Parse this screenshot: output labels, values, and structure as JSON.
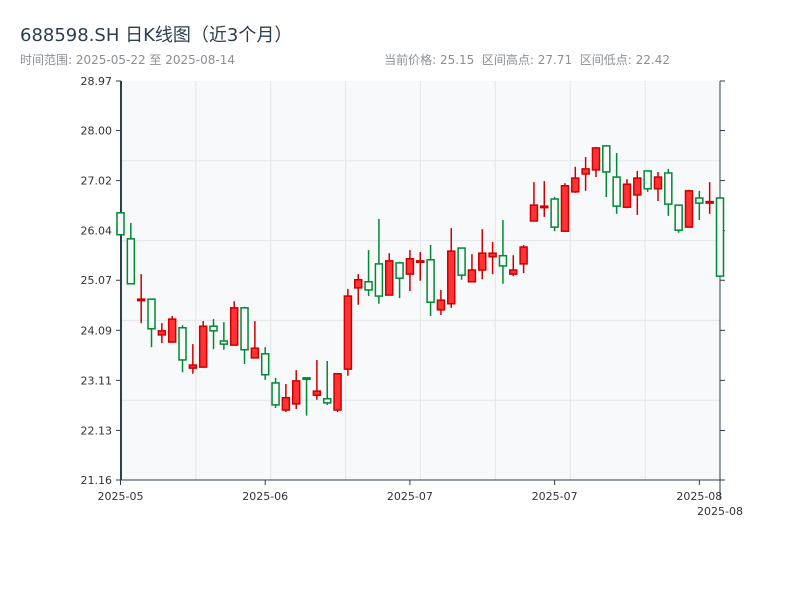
{
  "header": {
    "title": "688598.SH 日K线图（近3个月）",
    "subtitle": "时间范围: 2025-05-22 至 2025-08-14",
    "stats": "当前价格: 25.15  区间高点: 27.71  区间低点: 22.42"
  },
  "chart_data": {
    "type": "candlestick",
    "title": "688598.SH 日K线图（近3个月）",
    "date_range": [
      "2025-05-22",
      "2025-08-14"
    ],
    "current_price": 25.15,
    "period_high": 27.71,
    "period_low": 22.42,
    "colors": {
      "up": "#ff3333",
      "up_edge": "#cc0000",
      "down": "#008833",
      "background": "#f8f9fb"
    },
    "ylim": [
      21.16,
      28.97
    ],
    "yticks": [
      21.16,
      22.13,
      23.11,
      24.09,
      25.07,
      26.04,
      27.02,
      28.0,
      28.97
    ],
    "ytick_labels": [
      "21.16",
      "22.13",
      "23.11",
      "24.09",
      "25.07",
      "26.04",
      "27.02",
      "28.00",
      "28.97"
    ],
    "xticks": [
      {
        "index": 0,
        "label": "2025-05"
      },
      {
        "index": 14,
        "label": "2025-06"
      },
      {
        "index": 28,
        "label": "2025-07"
      },
      {
        "index": 42,
        "label": "2025-07"
      },
      {
        "index": 56,
        "label": "2025-08"
      },
      {
        "index": 58,
        "label": "2025-08"
      }
    ],
    "ohlc_fields": [
      "open",
      "high",
      "low",
      "close"
    ],
    "ohlc": [
      [
        26.39,
        26.39,
        25.96,
        25.96
      ],
      [
        25.88,
        26.19,
        25.0,
        25.0
      ],
      [
        24.68,
        25.19,
        24.23,
        24.7
      ],
      [
        24.7,
        24.7,
        23.76,
        24.12
      ],
      [
        24.0,
        24.23,
        23.84,
        24.08
      ],
      [
        23.86,
        24.37,
        23.86,
        24.31
      ],
      [
        24.14,
        24.19,
        23.27,
        23.51
      ],
      [
        23.35,
        23.82,
        23.24,
        23.41
      ],
      [
        23.37,
        24.27,
        23.37,
        24.17
      ],
      [
        24.17,
        24.31,
        23.72,
        24.08
      ],
      [
        23.88,
        24.25,
        23.71,
        23.82
      ],
      [
        23.8,
        24.66,
        23.8,
        24.53
      ],
      [
        24.53,
        24.55,
        23.43,
        23.71
      ],
      [
        23.55,
        24.27,
        23.55,
        23.74
      ],
      [
        23.63,
        23.76,
        23.12,
        23.22
      ],
      [
        23.06,
        23.16,
        22.57,
        22.63
      ],
      [
        22.53,
        23.04,
        22.49,
        22.77
      ],
      [
        22.65,
        23.31,
        22.55,
        23.1
      ],
      [
        23.16,
        23.16,
        22.42,
        23.14
      ],
      [
        22.82,
        23.51,
        22.73,
        22.9
      ],
      [
        22.75,
        23.49,
        22.63,
        22.67
      ],
      [
        22.53,
        23.24,
        22.49,
        23.24
      ],
      [
        23.33,
        24.9,
        23.2,
        24.76
      ],
      [
        24.92,
        25.19,
        24.59,
        25.08
      ],
      [
        25.04,
        25.66,
        24.76,
        24.88
      ],
      [
        25.39,
        26.27,
        24.61,
        24.76
      ],
      [
        24.78,
        25.6,
        24.78,
        25.45
      ],
      [
        25.41,
        25.43,
        24.72,
        25.11
      ],
      [
        25.19,
        25.66,
        24.86,
        25.49
      ],
      [
        25.43,
        25.62,
        25.06,
        25.45
      ],
      [
        25.47,
        25.76,
        24.37,
        24.64
      ],
      [
        24.49,
        24.88,
        24.39,
        24.68
      ],
      [
        24.61,
        26.09,
        24.53,
        25.64
      ],
      [
        25.7,
        25.7,
        25.08,
        25.17
      ],
      [
        25.04,
        25.58,
        25.04,
        25.27
      ],
      [
        25.27,
        26.07,
        25.09,
        25.6
      ],
      [
        25.53,
        25.82,
        25.19,
        25.6
      ],
      [
        25.55,
        26.25,
        25.0,
        25.35
      ],
      [
        25.19,
        25.56,
        25.15,
        25.27
      ],
      [
        25.39,
        25.76,
        25.21,
        25.72
      ],
      [
        26.23,
        26.99,
        26.23,
        26.54
      ],
      [
        26.51,
        27.01,
        26.31,
        26.52
      ],
      [
        26.66,
        26.7,
        26.03,
        26.11
      ],
      [
        26.03,
        26.97,
        26.03,
        26.92
      ],
      [
        26.8,
        27.29,
        26.78,
        27.07
      ],
      [
        27.15,
        27.48,
        26.82,
        27.25
      ],
      [
        27.23,
        27.68,
        27.09,
        27.66
      ],
      [
        27.7,
        27.71,
        26.7,
        27.19
      ],
      [
        27.09,
        27.56,
        26.37,
        26.52
      ],
      [
        26.5,
        27.05,
        26.48,
        26.95
      ],
      [
        26.74,
        27.21,
        26.35,
        27.07
      ],
      [
        27.21,
        27.21,
        26.8,
        26.86
      ],
      [
        26.86,
        27.19,
        26.62,
        27.09
      ],
      [
        27.17,
        27.25,
        26.33,
        26.56
      ],
      [
        26.54,
        26.54,
        26.0,
        26.05
      ],
      [
        26.11,
        26.84,
        26.11,
        26.82
      ],
      [
        26.68,
        26.82,
        26.25,
        26.58
      ],
      [
        26.6,
        26.99,
        26.37,
        26.61
      ],
      [
        26.68,
        26.7,
        25.15,
        25.15
      ]
    ],
    "grid": true
  }
}
